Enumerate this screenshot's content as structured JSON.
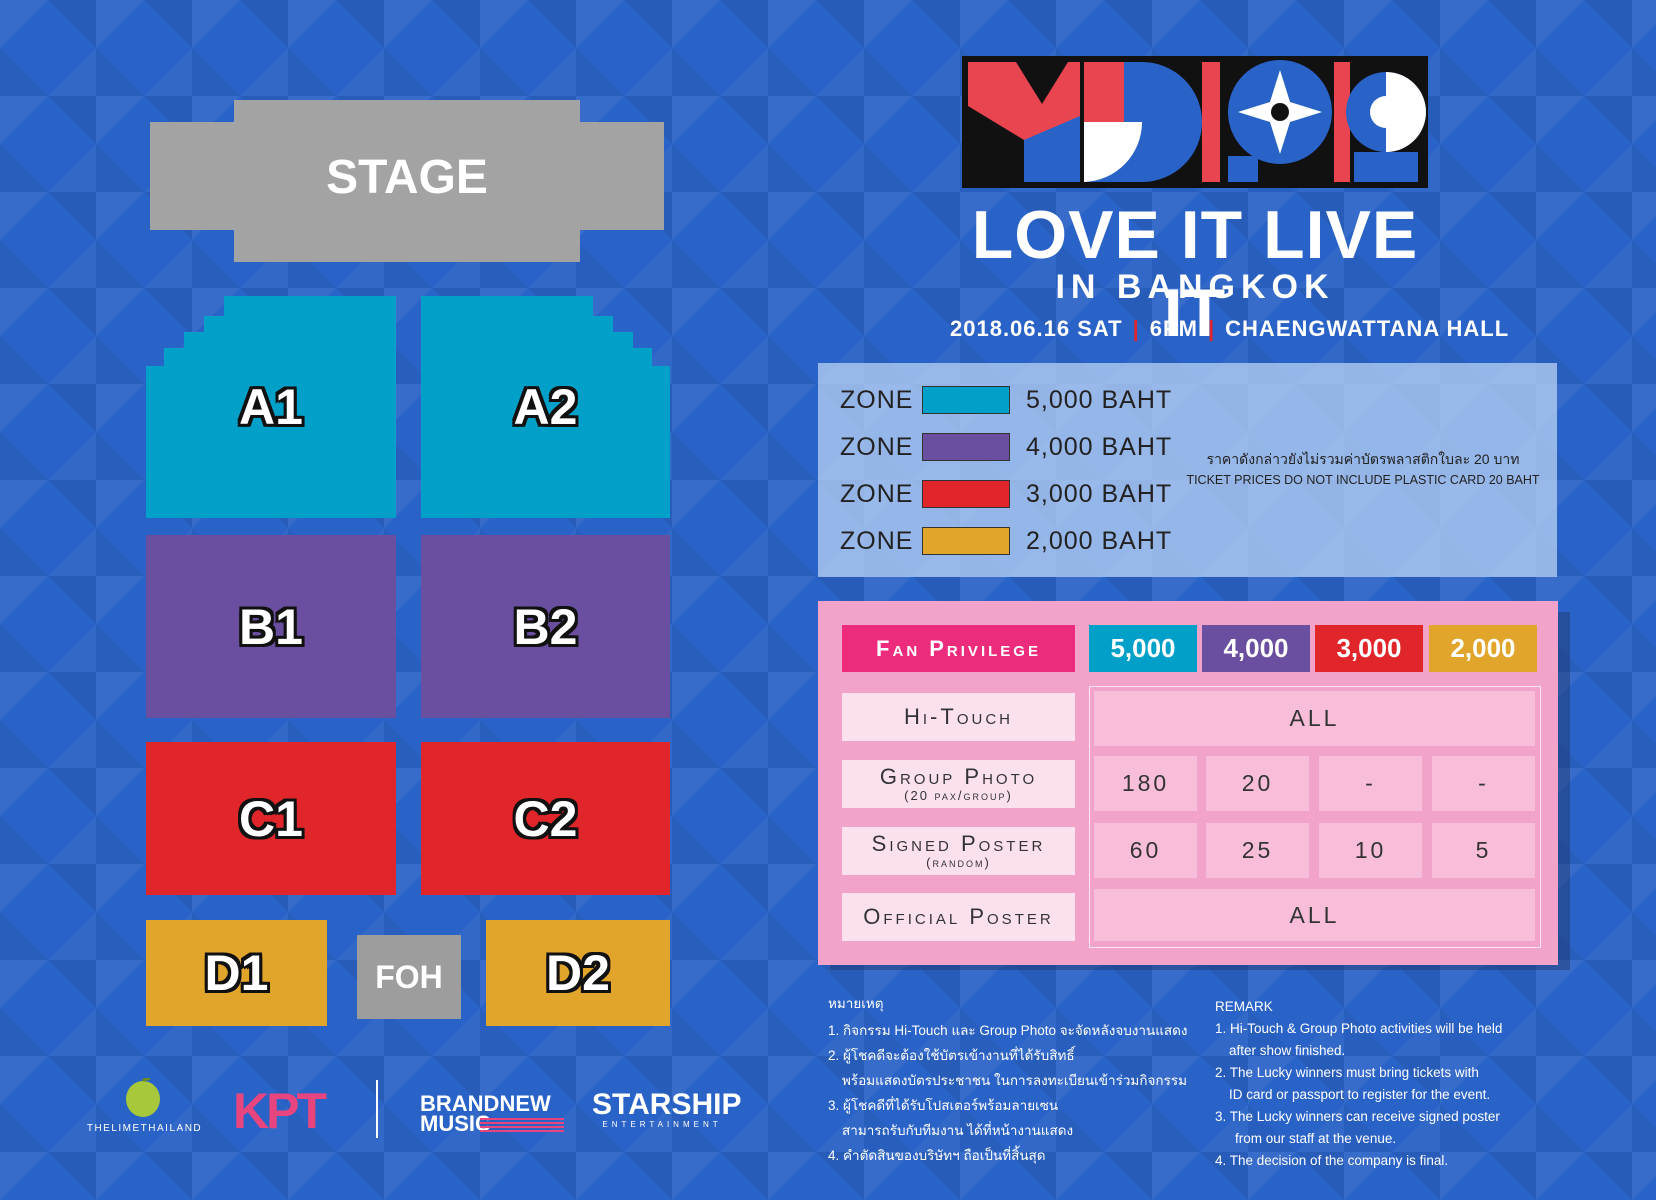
{
  "stage": {
    "label": "STAGE"
  },
  "zones": {
    "a1": "A1",
    "a2": "A2",
    "b1": "B1",
    "b2": "B2",
    "c1": "C1",
    "c2": "C2",
    "d1": "D1",
    "d2": "D2",
    "foh": "FOH"
  },
  "colors": {
    "zone_a": "#00a0c8",
    "zone_b": "#6a4fa0",
    "zone_c": "#e0262a",
    "zone_d": "#e2a52b",
    "background": "#2a63c7",
    "privilege_bg": "#f1a3c9",
    "privilege_title": "#ec2b7d"
  },
  "event": {
    "title": "LOVE IT LIVE IT",
    "subtitle": "IN BANGKOK",
    "date": "2018.06.16 SAT",
    "time": "6PM",
    "venue": "CHAENGWATTANA HALL",
    "separator": "|"
  },
  "prices": {
    "zone_word": "ZONE",
    "rows": [
      {
        "amount": "5,000 BAHT",
        "color": "#00a0c8"
      },
      {
        "amount": "4,000 BAHT",
        "color": "#6a4fa0"
      },
      {
        "amount": "3,000 BAHT",
        "color": "#e0262a"
      },
      {
        "amount": "2,000 BAHT",
        "color": "#e2a52b"
      }
    ],
    "note_th": "ราคาดังกล่าวยังไม่รวมค่าบัตรพลาสติกใบละ 20 บาท",
    "note_en": "TICKET PRICES DO NOT INCLUDE PLASTIC CARD 20 BAHT"
  },
  "privilege": {
    "title": "Fan Privilege",
    "tiers": [
      "5,000",
      "4,000",
      "3,000",
      "2,000"
    ],
    "rows": [
      {
        "label": "Hi-Touch",
        "sub": "",
        "values": [
          "ALL"
        ]
      },
      {
        "label": "Group Photo",
        "sub": "(20 pax/group)",
        "values": [
          "180",
          "20",
          "-",
          "-"
        ]
      },
      {
        "label": "Signed Poster",
        "sub": "(random)",
        "values": [
          "60",
          "25",
          "10",
          "5"
        ]
      },
      {
        "label": "Official Poster",
        "sub": "",
        "values": [
          "ALL"
        ]
      }
    ]
  },
  "remarks_th": {
    "heading": "หมายเหตุ",
    "items": [
      "1. กิจกรรม Hi-Touch และ Group Photo จะจัดหลังจบงานแสดง",
      "2. ผู้โชคดีจะต้องใช้บัตรเข้างานที่ได้รับสิทธิ์",
      "    พร้อมแสดงบัตรประชาชน ในการลงทะเบียนเข้าร่วมกิจกรรม",
      "3. ผู้โชคดีที่ได้รับโปสเตอร์พร้อมลายเซน",
      "    สามารถรับกับทีมงาน ได้ที่หน้างานแสดง",
      "4. คำตัดสินของบริษัทฯ ถือเป็นที่สิ้นสุด"
    ]
  },
  "remarks_en": {
    "heading": "REMARK",
    "items": [
      "1. Hi-Touch & Group Photo activities will be held",
      "    after show finished.",
      "2. The Lucky winners must bring tickets with",
      "    ID card or passport to register for the event.",
      "3. The Lucky winners can receive signed poster",
      "     from our staff at the venue.",
      "4. The decision of the company is final."
    ]
  },
  "sponsors": {
    "lime": "THELIMETHAILAND",
    "kpt": "KPT",
    "brandnew_1": "BRANDNEW",
    "brandnew_2": "MUSIC",
    "starship": "STARSHIP",
    "starship_sub": "ENTERTAINMENT"
  }
}
